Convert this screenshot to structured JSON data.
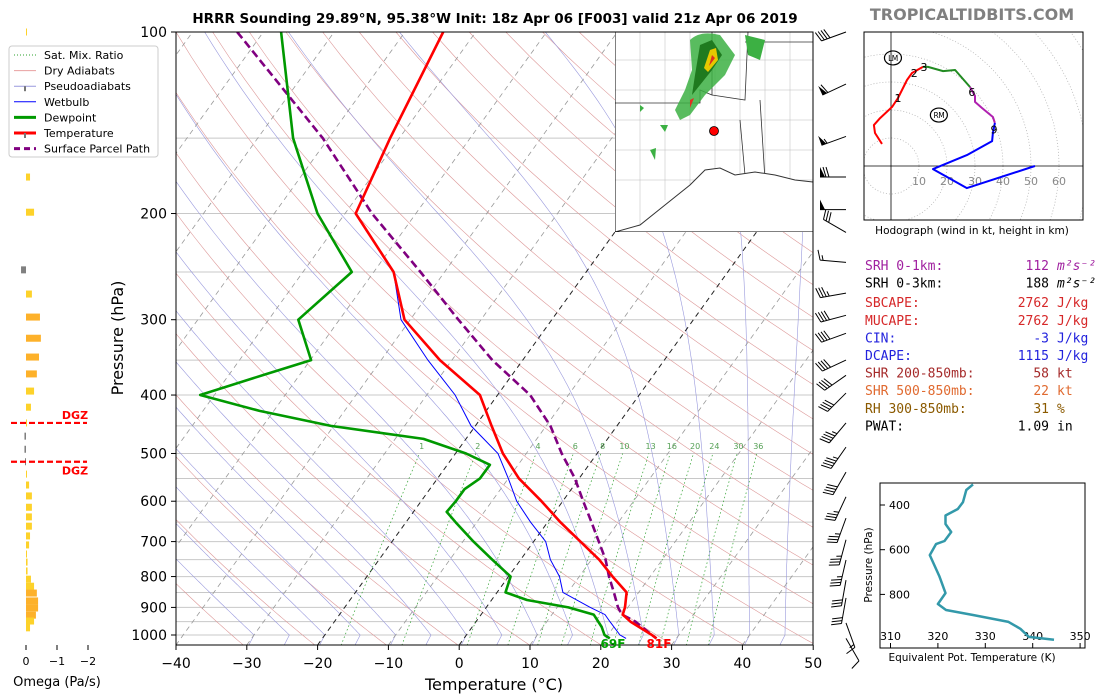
{
  "header": {
    "title": "HRRR Sounding 29.89°N, 95.38°W Init: 18z Apr 06 [F003] valid 21z Apr 06 2019",
    "brand": "TROPICALTIDBITS.COM"
  },
  "legend": {
    "items": [
      {
        "label": "Sat. Mix. Ratio",
        "color": "#2ca02c",
        "style": "dotted"
      },
      {
        "label": "Dry Adiabats",
        "color": "#e8a0a0",
        "style": "solid"
      },
      {
        "label": "Pseudoadiabats",
        "color": "#9999dd",
        "style": "solid"
      },
      {
        "label": "Wetbulb",
        "color": "#0000ff",
        "style": "solid"
      },
      {
        "label": "Dewpoint",
        "color": "#009900",
        "style": "thick"
      },
      {
        "label": "Temperature",
        "color": "#ff0000",
        "style": "thick"
      },
      {
        "label": "Surface Parcel Path",
        "color": "#800080",
        "style": "dashed"
      }
    ]
  },
  "stats": [
    {
      "label": "SRH 0-1km:",
      "value": "112",
      "unit": "m²s⁻²",
      "color": "#a020a0"
    },
    {
      "label": "SRH 0-3km:",
      "value": "188",
      "unit": "m²s⁻²",
      "color": "#000000"
    },
    {
      "label": "SBCAPE:",
      "value": "2762",
      "unit": "J/kg",
      "color": "#d62728"
    },
    {
      "label": "MUCAPE:",
      "value": "2762",
      "unit": "J/kg",
      "color": "#d62728"
    },
    {
      "label": "CIN:",
      "value": "-3",
      "unit": "J/kg",
      "color": "#2222dd"
    },
    {
      "label": "DCAPE:",
      "value": "1115",
      "unit": "J/kg",
      "color": "#2222dd"
    },
    {
      "label": "SHR 200-850mb:",
      "value": "58",
      "unit": "kt",
      "color": "#a52a2a"
    },
    {
      "label": "SHR 500-850mb:",
      "value": "22",
      "unit": "kt",
      "color": "#e06a30"
    },
    {
      "label": "RH 300-850mb:",
      "value": "31",
      "unit": "%",
      "color": "#8b5a00"
    },
    {
      "label": "PWAT:",
      "value": "1.09",
      "unit": "in",
      "color": "#000000"
    }
  ],
  "chart_data": [
    {
      "id": "skewt",
      "type": "line",
      "xlabel": "Temperature (°C)",
      "ylabel": "Pressure (hPa)",
      "xlim": [
        -40,
        50
      ],
      "ylim": [
        1040,
        100
      ],
      "xticks": [
        "−40",
        "−30",
        "−20",
        "−10",
        "0",
        "10",
        "20",
        "30",
        "40",
        "50"
      ],
      "xtick_values": [
        -40,
        -30,
        -20,
        -10,
        0,
        10,
        20,
        30,
        40,
        50
      ],
      "yticks": [
        "100",
        "200",
        "300",
        "400",
        "500",
        "600",
        "700",
        "800",
        "900",
        "1000"
      ],
      "ytick_values": [
        100,
        200,
        300,
        400,
        500,
        600,
        700,
        800,
        900,
        1000
      ],
      "mixing_ratio_labels": [
        "1",
        "2",
        "4",
        "6",
        "8",
        "10",
        "13",
        "16",
        "20",
        "24",
        "30",
        "36"
      ],
      "mixing_ratio_values": [
        1,
        2,
        4,
        6,
        8,
        10,
        13,
        16,
        20,
        24,
        30,
        36
      ],
      "surface_dewpoint_label": "69F",
      "surface_temperature_label": "81F",
      "colors": {
        "temperature": "#ff0000",
        "dewpoint": "#009900",
        "wetbulb": "#0000ff",
        "parcel": "#800080"
      },
      "pressure_levels": [
        100,
        150,
        200,
        250,
        300,
        350,
        400,
        450,
        500,
        550,
        600,
        650,
        700,
        750,
        800,
        850,
        900,
        925,
        950,
        1000,
        1013
      ],
      "temperature": [
        -64.6,
        -61.3,
        -58.5,
        -47.2,
        -40.8,
        -31.7,
        -22.5,
        -17.7,
        -13.3,
        -8.5,
        -3.0,
        1.8,
        6.6,
        11.1,
        14.7,
        18.3,
        19.6,
        20.0,
        21.8,
        26.2,
        27.2
      ],
      "parcel": [
        -93.7,
        -70.8,
        -56.2,
        -43.4,
        -33.2,
        -24.3,
        -15.4,
        -9.4,
        -5.0,
        -0.6,
        2.9,
        6.2,
        9.2,
        12.0,
        14.2,
        16.5,
        18.6,
        19.9,
        22.5,
        26.2,
        27.2
      ],
      "dewpoint_profile": [
        [
          100,
          -87.5
        ],
        [
          150,
          -75
        ],
        [
          200,
          -63.9
        ],
        [
          250,
          -53.1
        ],
        [
          300,
          -55.8
        ],
        [
          350,
          -49.9
        ],
        [
          370,
          -55
        ],
        [
          400,
          -62
        ],
        [
          425,
          -52
        ],
        [
          450,
          -40.4
        ],
        [
          473,
          -26
        ],
        [
          500,
          -18.5
        ],
        [
          522,
          -14
        ],
        [
          550,
          -14
        ],
        [
          573,
          -15.1
        ],
        [
          600,
          -15.1
        ],
        [
          625,
          -15.3
        ],
        [
          650,
          -13
        ],
        [
          700,
          -8.5
        ],
        [
          750,
          -4
        ],
        [
          800,
          0.3
        ],
        [
          850,
          1.2
        ],
        [
          875,
          5
        ],
        [
          900,
          11.6
        ],
        [
          925,
          15.9
        ],
        [
          970,
          18.3
        ],
        [
          1000,
          19.5
        ],
        [
          1013,
          20.6
        ]
      ],
      "wetbulb_profile": [
        [
          250,
          -47.2
        ],
        [
          300,
          -41.3
        ],
        [
          350,
          -33.4
        ],
        [
          400,
          -26
        ],
        [
          450,
          -20.6
        ],
        [
          500,
          -14
        ],
        [
          550,
          -10
        ],
        [
          600,
          -6.5
        ],
        [
          650,
          -2.4
        ],
        [
          700,
          1.7
        ],
        [
          750,
          4.2
        ],
        [
          800,
          7.2
        ],
        [
          850,
          9.3
        ],
        [
          900,
          14.7
        ],
        [
          925,
          17.5
        ],
        [
          950,
          18.9
        ],
        [
          1000,
          21.7
        ],
        [
          1013,
          22.9
        ]
      ],
      "winds": [
        {
          "p": 100,
          "dir": 250,
          "kt": 40
        },
        {
          "p": 122,
          "dir": 245,
          "kt": 60
        },
        {
          "p": 149,
          "dir": 250,
          "kt": 55
        },
        {
          "p": 174,
          "dir": 270,
          "kt": 70
        },
        {
          "p": 197,
          "dir": 270,
          "kt": 50
        },
        {
          "p": 215,
          "dir": 300,
          "kt": 30
        },
        {
          "p": 241,
          "dir": 275,
          "kt": 15
        },
        {
          "p": 271,
          "dir": 260,
          "kt": 35
        },
        {
          "p": 295,
          "dir": 255,
          "kt": 40
        },
        {
          "p": 316,
          "dir": 250,
          "kt": 40
        },
        {
          "p": 350,
          "dir": 245,
          "kt": 40
        },
        {
          "p": 371,
          "dir": 235,
          "kt": 40
        },
        {
          "p": 397,
          "dir": 225,
          "kt": 40
        },
        {
          "p": 445,
          "dir": 220,
          "kt": 45
        },
        {
          "p": 488,
          "dir": 215,
          "kt": 45
        },
        {
          "p": 537,
          "dir": 210,
          "kt": 40
        },
        {
          "p": 590,
          "dir": 205,
          "kt": 35
        },
        {
          "p": 640,
          "dir": 200,
          "kt": 35
        },
        {
          "p": 695,
          "dir": 195,
          "kt": 35
        },
        {
          "p": 751,
          "dir": 193,
          "kt": 35
        },
        {
          "p": 811,
          "dir": 190,
          "kt": 30
        },
        {
          "p": 868,
          "dir": 190,
          "kt": 30
        },
        {
          "p": 955,
          "dir": 160,
          "kt": 15
        },
        {
          "p": 1013,
          "dir": 150,
          "kt": 10
        }
      ]
    },
    {
      "id": "omega",
      "type": "bar",
      "xlabel": "Omega (Pa/s)",
      "xticks": [
        "0",
        "−1",
        "−2"
      ],
      "xtick_values": [
        0,
        -1,
        -2
      ],
      "dgz_label": "DGZ",
      "dgz_pressures": [
        445,
        516
      ],
      "colors": {
        "up": "#fdd22a",
        "strong_up": "#fdb12a",
        "down": "#808080"
      },
      "pressure": [
        100,
        174,
        199,
        248,
        272,
        297,
        322,
        346,
        369,
        394,
        419,
        445,
        468,
        492,
        516,
        541,
        564,
        588,
        614,
        637,
        660,
        685,
        709,
        734,
        757,
        783,
        808,
        830,
        852,
        878,
        902,
        927,
        948,
        973
      ],
      "omega": [
        -0.03,
        -0.13,
        -0.26,
        0.16,
        -0.19,
        -0.45,
        -0.48,
        -0.42,
        -0.35,
        -0.26,
        -0.16,
        -0.02,
        0.05,
        0.05,
        0.02,
        -0.03,
        -0.1,
        -0.19,
        -0.19,
        -0.19,
        -0.19,
        -0.13,
        -0.1,
        -0.03,
        -0.05,
        -0.05,
        -0.16,
        -0.26,
        -0.35,
        -0.39,
        -0.39,
        -0.32,
        -0.26,
        -0.13
      ]
    },
    {
      "id": "hodograph",
      "type": "line",
      "caption": "Hodograph (wind in kt, height in km)",
      "ring_labels": [
        "10",
        "20",
        "30",
        "40",
        "50",
        "60"
      ],
      "ring_values": [
        10,
        20,
        30,
        40,
        50,
        60
      ],
      "segments": [
        {
          "name": "0-3km",
          "color": "#ff0000",
          "uv": [
            [
              -3.2,
              7.9
            ],
            [
              -5.7,
              11.8
            ],
            [
              -6.1,
              14.6
            ],
            [
              -3.9,
              17.1
            ],
            [
              0.4,
              21.1
            ],
            [
              2.5,
              24.3
            ],
            [
              5.7,
              30.7
            ],
            [
              7.5,
              33.2
            ],
            [
              11.4,
              35.4
            ]
          ]
        },
        {
          "name": "3-6km",
          "color": "#228b22",
          "uv": [
            [
              11.4,
              35.4
            ],
            [
              13.2,
              35.4
            ],
            [
              18.6,
              33.9
            ],
            [
              22.9,
              34.3
            ],
            [
              28.2,
              28.2
            ]
          ]
        },
        {
          "name": "6-9km",
          "color": "#b020b0",
          "uv": [
            [
              28.2,
              28.2
            ],
            [
              30,
              25
            ],
            [
              30,
              22.9
            ],
            [
              32.5,
              20.7
            ],
            [
              36.4,
              17.5
            ],
            [
              37.1,
              15.4
            ]
          ]
        },
        {
          "name": "9km+",
          "color": "#0000ff",
          "uv": [
            [
              37.1,
              15.4
            ],
            [
              36.4,
              11.8
            ],
            [
              36.1,
              8.9
            ],
            [
              27.1,
              3.9
            ],
            [
              15,
              -1.1
            ],
            [
              27.1,
              -7.9
            ],
            [
              51.4,
              0
            ]
          ]
        }
      ],
      "height_labels": [
        {
          "text": "1",
          "uv": [
            2.5,
            24.3
          ]
        },
        {
          "text": "2",
          "uv": [
            8.3,
            33.2
          ]
        },
        {
          "text": "3",
          "uv": [
            11.8,
            35.4
          ]
        },
        {
          "text": "6",
          "uv": [
            28.9,
            26.4
          ]
        },
        {
          "text": "9",
          "uv": [
            36.8,
            13
          ]
        }
      ],
      "motions": [
        {
          "text": "LM",
          "uv": [
            0.7,
            38.6
          ]
        },
        {
          "text": "RM",
          "uv": [
            17.1,
            18.2
          ]
        }
      ]
    },
    {
      "id": "theta_e",
      "type": "line",
      "xlabel": "Equivalent Pot. Temperature (K)",
      "ylabel": "Pressure (hPa)",
      "xticks": [
        "310",
        "320",
        "330",
        "340",
        "350"
      ],
      "xtick_values": [
        310,
        320,
        330,
        340,
        350
      ],
      "yticks": [
        "400",
        "600",
        "800"
      ],
      "ytick_values": [
        400,
        600,
        800
      ],
      "color": "#3399aa",
      "points": [
        [
          327.4,
          308
        ],
        [
          326.0,
          333
        ],
        [
          325.3,
          387
        ],
        [
          324.2,
          418
        ],
        [
          321.6,
          447
        ],
        [
          321.6,
          485
        ],
        [
          322.8,
          521
        ],
        [
          321.4,
          561
        ],
        [
          319.6,
          575
        ],
        [
          318.3,
          624
        ],
        [
          320.3,
          718
        ],
        [
          321.6,
          794
        ],
        [
          320.0,
          843
        ],
        [
          321.7,
          870
        ],
        [
          327.4,
          892
        ],
        [
          334.9,
          923
        ],
        [
          337.4,
          954
        ],
        [
          339.2,
          990
        ],
        [
          344.5,
          1003
        ]
      ]
    }
  ]
}
